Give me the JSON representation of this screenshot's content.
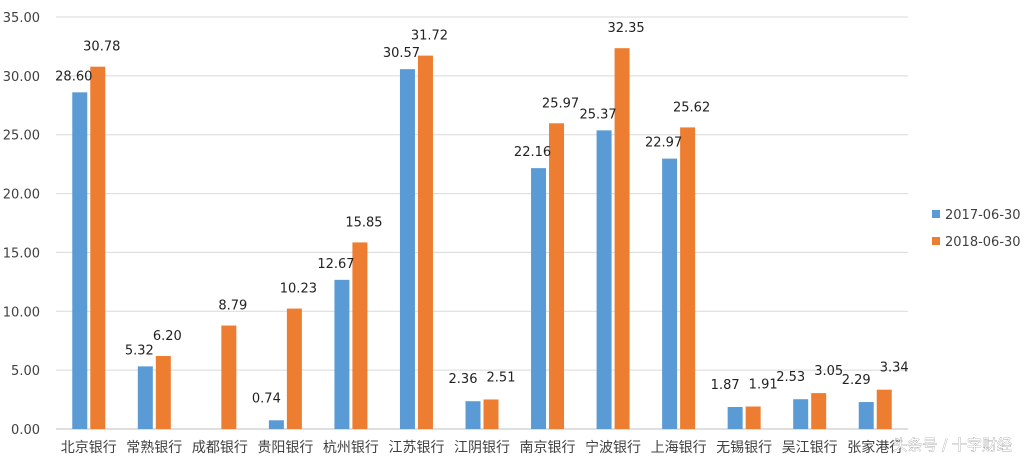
{
  "chart_data": {
    "type": "bar",
    "categories": [
      "北京银行",
      "常熟银行",
      "成都银行",
      "贵阳银行",
      "杭州银行",
      "江苏银行",
      "江阴银行",
      "南京银行",
      "宁波银行",
      "上海银行",
      "无锡银行",
      "吴江银行",
      "张家港行"
    ],
    "series": [
      {
        "name": "2017-06-30",
        "color": "#5b9bd5",
        "values": [
          28.6,
          5.32,
          null,
          0.74,
          12.67,
          30.57,
          2.36,
          22.16,
          25.37,
          22.97,
          1.87,
          2.53,
          2.29
        ],
        "labels": [
          "28.60",
          "5.32",
          "",
          "0.74",
          "12.67",
          "30.57",
          "2.36",
          "22.16",
          "25.37",
          "22.97",
          "1.87",
          "2.53",
          "2.29"
        ]
      },
      {
        "name": "2018-06-30",
        "color": "#ed7d31",
        "values": [
          30.78,
          6.2,
          8.79,
          10.23,
          15.85,
          31.72,
          2.51,
          25.97,
          32.35,
          25.62,
          1.91,
          3.05,
          3.34
        ],
        "labels": [
          "30.78",
          "6.20",
          "8.79",
          "10.23",
          "15.85",
          "31.72",
          "2.51",
          "25.97",
          "32.35",
          "25.62",
          "1.91",
          "3.05",
          "3.34"
        ]
      }
    ],
    "yticks": [
      "0.00",
      "5.00",
      "10.00",
      "15.00",
      "20.00",
      "25.00",
      "30.00",
      "35.00"
    ],
    "ylim": [
      0,
      35
    ],
    "grid": true,
    "legend_position": "right",
    "title": "",
    "xlabel": "",
    "ylabel": ""
  },
  "watermark": "头条号 / 十字财经"
}
